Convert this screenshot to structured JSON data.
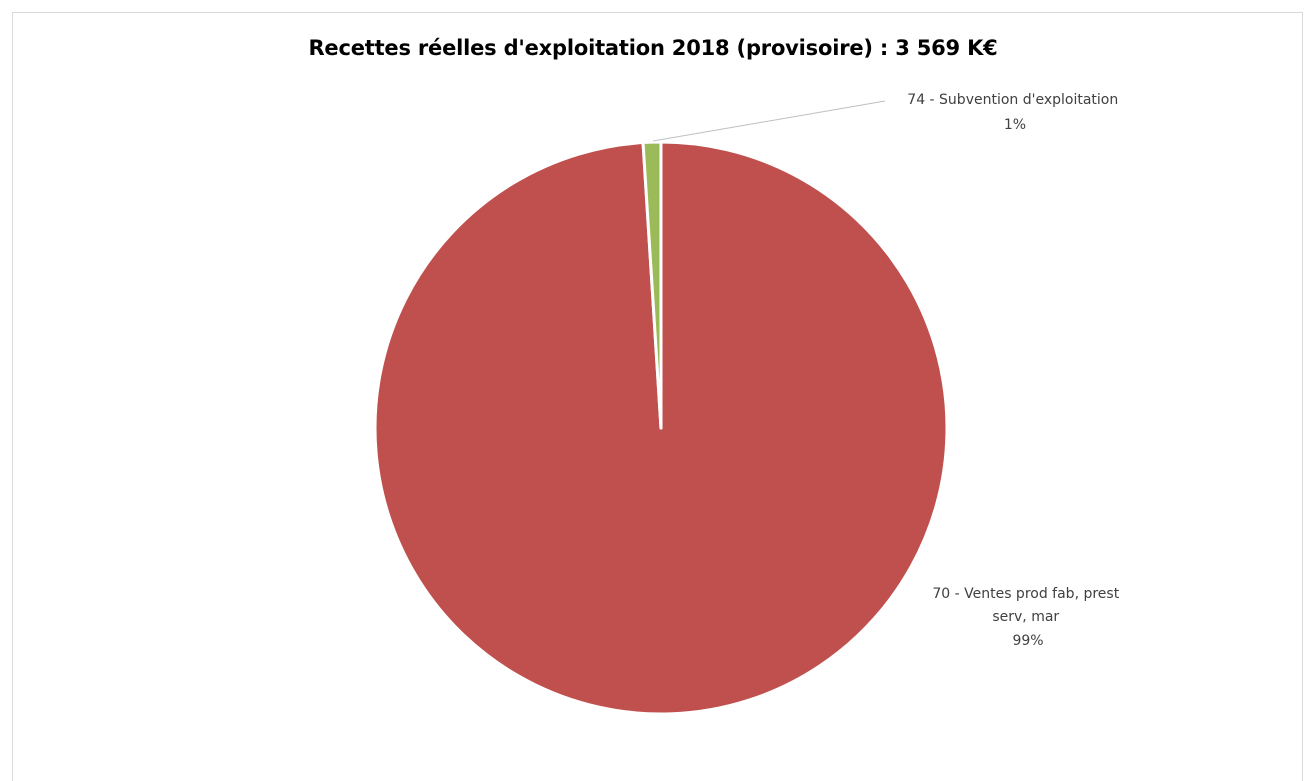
{
  "chart_data": {
    "type": "pie",
    "title": "Recettes réelles d'exploitation 2018 (provisoire) : 3 569 K€",
    "slices": [
      {
        "label_lines": [
          "70 - Ventes prod fab, prest",
          "serv, mar"
        ],
        "percent_label": "99%",
        "value": 99.0,
        "color": "#C0504D"
      },
      {
        "label_lines": [
          "74 - Subvention d'exploitation"
        ],
        "percent_label": "1%",
        "value": 1.0,
        "color": "#9BBB59"
      }
    ],
    "slice_border_color": "#ffffff",
    "leader_line_color": "#bfbfbf",
    "legend": "none"
  }
}
